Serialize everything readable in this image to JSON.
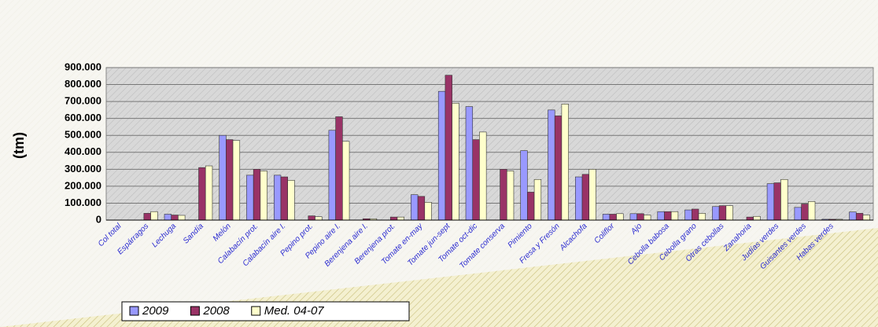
{
  "chart_data": {
    "type": "bar",
    "y_label": "(tm)",
    "categories": [
      "Col total",
      "Espárragos",
      "Lechuga",
      "Sandía",
      "Melón",
      "Calabacín prot.",
      "Calabacín aire l.",
      "Pepino prot.",
      "Pepino aire l.",
      "Berenjena aire l.",
      "Berenjena prot.",
      "Tomate en-may",
      "Tomate jun-sept",
      "Tomate oct-dic",
      "Tomate conserva",
      "Pimiento",
      "Fresa y Fresón",
      "Alcachofa",
      "Coliflor",
      "Ajo",
      "Cebolla babosa",
      "Cebolla grano",
      "Otras cebollas",
      "Zanahoria",
      "Judías verdes",
      "Guisantes verdes",
      "Habas verdes",
      null
    ],
    "series": [
      {
        "name": "2009",
        "color": "#9999ff",
        "values": [
          null,
          null,
          35000,
          null,
          500000,
          265000,
          265000,
          null,
          530000,
          null,
          null,
          150000,
          760000,
          670000,
          null,
          410000,
          650000,
          255000,
          35000,
          38000,
          50000,
          60000,
          80000,
          null,
          215000,
          75000,
          5000,
          48000
        ]
      },
      {
        "name": "2008",
        "color": "#993366",
        "values": [
          null,
          40000,
          30000,
          310000,
          475000,
          300000,
          255000,
          25000,
          610000,
          8000,
          18000,
          140000,
          855000,
          475000,
          300000,
          165000,
          615000,
          270000,
          35000,
          38000,
          50000,
          65000,
          85000,
          18000,
          220000,
          95000,
          5000,
          40000
        ]
      },
      {
        "name": "Med. 04-07",
        "color": "#ffffcc",
        "values": [
          null,
          50000,
          28000,
          320000,
          470000,
          290000,
          235000,
          20000,
          465000,
          8000,
          18000,
          105000,
          690000,
          520000,
          290000,
          240000,
          685000,
          300000,
          38000,
          30000,
          50000,
          40000,
          85000,
          22000,
          240000,
          110000,
          5000,
          30000
        ]
      }
    ],
    "ylim": [
      0,
      900000
    ],
    "yticks": [
      0,
      {
        "value": 100000,
        "label": "100.000"
      },
      {
        "value": 200000,
        "label": "200.000"
      },
      {
        "value": 300000,
        "label": "300.000"
      },
      {
        "value": 400000,
        "label": "400.000"
      },
      {
        "value": 500000,
        "label": "500.000"
      },
      {
        "value": 600000,
        "label": "600.000"
      },
      {
        "value": 700000,
        "label": "700.000"
      },
      {
        "value": 800000,
        "label": "800.000"
      },
      {
        "value": 900000,
        "label": "900.000"
      }
    ],
    "grid": true
  }
}
